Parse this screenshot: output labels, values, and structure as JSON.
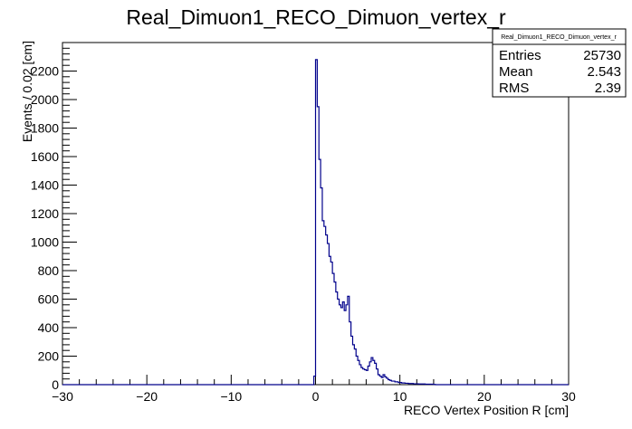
{
  "chart_data": {
    "type": "histogram",
    "title": "Real_Dimuon1_RECO_Dimuon_vertex_r",
    "xlabel": "RECO Vertex Position R [cm]",
    "ylabel": "Events / 0.02 [cm]",
    "xlim": [
      -30,
      30
    ],
    "ylim": [
      0,
      2400
    ],
    "x_tick_labels": [
      "−30",
      "−20",
      "−10",
      "0",
      "10",
      "20",
      "30"
    ],
    "x_tick_values": [
      -30,
      -20,
      -10,
      0,
      10,
      20,
      30
    ],
    "y_tick_labels": [
      "0",
      "200",
      "400",
      "600",
      "800",
      "1000",
      "1200",
      "1400",
      "1600",
      "1800",
      "2000",
      "2200"
    ],
    "y_tick_values": [
      0,
      200,
      400,
      600,
      800,
      1000,
      1200,
      1400,
      1600,
      1800,
      2000,
      2200
    ],
    "line_color": "#00008b",
    "bin_width": 0.2,
    "series": [
      {
        "x": [
          -0.2,
          0.0,
          0.2,
          0.4,
          0.6,
          0.8,
          1.0,
          1.2,
          1.4,
          1.6,
          1.8,
          2.0,
          2.2,
          2.4,
          2.6,
          2.8,
          3.0,
          3.2,
          3.4,
          3.6,
          3.8,
          4.0,
          4.2,
          4.4,
          4.6,
          4.8,
          5.0,
          5.2,
          5.4,
          5.6,
          5.8,
          6.0,
          6.2,
          6.4,
          6.6,
          6.8,
          7.0,
          7.2,
          7.4,
          7.6,
          7.8,
          8.0,
          8.2,
          8.4,
          8.6,
          8.8,
          9.0,
          9.4,
          9.8,
          10.2,
          10.6,
          11.0,
          11.6,
          12.2,
          13.0,
          14.0
        ],
        "values": [
          60,
          2280,
          1950,
          1580,
          1380,
          1150,
          1110,
          1050,
          990,
          900,
          860,
          780,
          720,
          650,
          600,
          560,
          540,
          580,
          520,
          560,
          620,
          440,
          340,
          280,
          250,
          200,
          170,
          140,
          120,
          110,
          105,
          100,
          130,
          160,
          190,
          170,
          150,
          110,
          70,
          60,
          50,
          70,
          55,
          45,
          35,
          30,
          25,
          20,
          15,
          12,
          10,
          8,
          6,
          5,
          3,
          2
        ]
      }
    ]
  },
  "stats": {
    "name": "Real_Dimuon1_RECO_Dimuon_vertex_r",
    "rows": [
      {
        "label": "Entries",
        "value": "25730"
      },
      {
        "label": "Mean",
        "value": "2.543"
      },
      {
        "label": "RMS",
        "value": "2.39"
      }
    ]
  }
}
